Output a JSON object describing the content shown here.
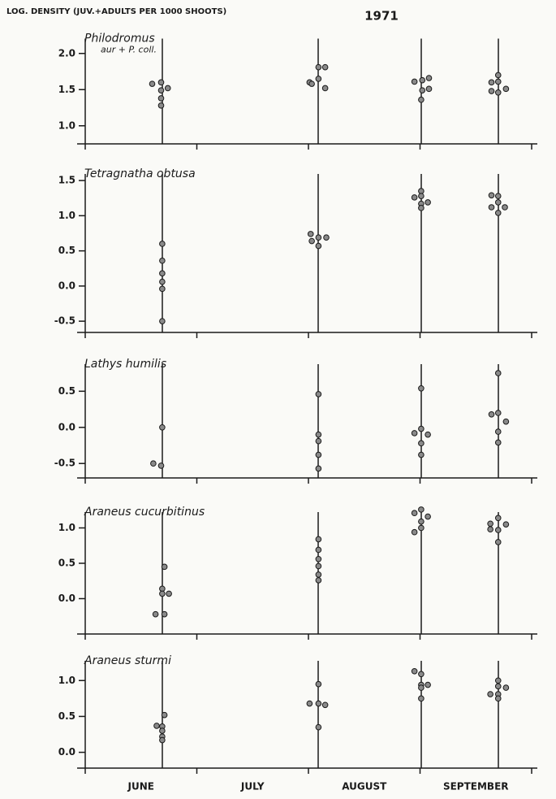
{
  "title": "LOG. DENSITY (JUV.+ADULTS PER 1000 SHOOTS)",
  "subtitle": "1971",
  "x_axis": {
    "categories": [
      "JUNE",
      "JULY",
      "AUGUST",
      "SEPTEMBER"
    ],
    "xlim": [
      0,
      4
    ],
    "xticks": [
      0,
      1,
      2,
      3,
      4
    ]
  },
  "chart_data": [
    {
      "type": "scatter",
      "title": "Philodromus",
      "subtitle": "aur + P. coll.",
      "ylim": [
        0.75,
        2.25
      ],
      "yticks": [
        {
          "value": 1,
          "label": "1.0"
        },
        1.5,
        {
          "value": 2,
          "label": "2.0"
        }
      ],
      "x": [
        0.6,
        0.68,
        0.68,
        0.74,
        0.68,
        0.68,
        2.01,
        2.09,
        2.15,
        2.09,
        2.03,
        2.15,
        2.95,
        3.02,
        3.08,
        3.02,
        3.08,
        3.01,
        3.64,
        3.7,
        3.7,
        3.64,
        3.7,
        3.77
      ],
      "y": [
        1.58,
        1.6,
        1.49,
        1.52,
        1.38,
        1.28,
        1.6,
        1.81,
        1.81,
        1.65,
        1.58,
        1.52,
        1.61,
        1.63,
        1.66,
        1.49,
        1.51,
        1.36,
        1.6,
        1.7,
        1.61,
        1.48,
        1.46,
        1.51
      ]
    },
    {
      "type": "scatter",
      "title": "Tetragnatha obtusa",
      "ylim": [
        -0.66,
        1.64
      ],
      "yticks": [
        -0.5,
        {
          "value": 0,
          "label": "0.0"
        },
        0.5,
        {
          "value": 1,
          "label": "1.0"
        },
        1.5
      ],
      "x": [
        0.69,
        0.69,
        0.69,
        0.69,
        0.69,
        0.69,
        2.02,
        2.09,
        2.16,
        2.03,
        2.09,
        3.01,
        3.01,
        2.95,
        3.07,
        3.01,
        3.01,
        3.64,
        3.7,
        3.7,
        3.64,
        3.76,
        3.7
      ],
      "y": [
        0.6,
        0.36,
        0.18,
        0.06,
        -0.04,
        -0.5,
        0.74,
        0.69,
        0.69,
        0.64,
        0.57,
        1.35,
        1.28,
        1.26,
        1.19,
        1.17,
        1.11,
        1.29,
        1.28,
        1.19,
        1.12,
        1.12,
        1.04
      ]
    },
    {
      "type": "scatter",
      "title": "Lathys humilis",
      "ylim": [
        -0.7,
        0.92
      ],
      "yticks": [
        -0.5,
        {
          "value": 0,
          "label": "0.0"
        },
        0.5
      ],
      "x": [
        0.69,
        0.61,
        0.68,
        2.09,
        2.09,
        2.09,
        2.09,
        2.09,
        3.01,
        3.01,
        3.07,
        3.01,
        3.01,
        2.95,
        3.7,
        3.7,
        3.64,
        3.77,
        3.7,
        3.7
      ],
      "y": [
        0.0,
        -0.5,
        -0.53,
        0.46,
        -0.1,
        -0.19,
        -0.38,
        -0.57,
        0.54,
        -0.02,
        -0.1,
        -0.22,
        -0.38,
        -0.08,
        0.75,
        0.2,
        0.18,
        0.08,
        -0.06,
        -0.21
      ]
    },
    {
      "type": "scatter",
      "title": "Araneus cucurbitinus",
      "ylim": [
        -0.5,
        1.27
      ],
      "yticks": [
        {
          "value": 0,
          "label": "0.0"
        },
        0.5,
        {
          "value": 1,
          "label": "1.0"
        }
      ],
      "x": [
        0.71,
        0.69,
        0.75,
        0.69,
        0.63,
        0.71,
        2.09,
        2.09,
        2.09,
        2.09,
        2.09,
        2.09,
        3.01,
        2.95,
        3.07,
        3.01,
        3.01,
        2.95,
        3.63,
        3.7,
        3.63,
        3.77,
        3.7,
        3.7
      ],
      "y": [
        0.45,
        0.14,
        0.07,
        0.07,
        -0.22,
        -0.22,
        0.84,
        0.69,
        0.56,
        0.46,
        0.34,
        0.26,
        1.26,
        1.21,
        1.16,
        1.09,
        1.0,
        0.94,
        1.06,
        1.14,
        0.98,
        1.05,
        0.8,
        0.97
      ]
    },
    {
      "type": "scatter",
      "title": "Araneus sturmi",
      "ylim": [
        -0.22,
        1.32
      ],
      "yticks": [
        {
          "value": 0,
          "label": "0.0"
        },
        0.5,
        {
          "value": 1,
          "label": "1.0"
        }
      ],
      "x": [
        0.71,
        0.64,
        0.69,
        0.69,
        0.69,
        0.69,
        2.01,
        2.09,
        2.09,
        2.15,
        2.09,
        2.95,
        3.01,
        3.01,
        3.07,
        3.01,
        3.01,
        3.63,
        3.7,
        3.7,
        3.77,
        3.7,
        3.7
      ],
      "y": [
        0.52,
        0.37,
        0.36,
        0.3,
        0.22,
        0.17,
        0.68,
        0.95,
        0.68,
        0.66,
        0.35,
        1.13,
        1.09,
        0.94,
        0.94,
        0.9,
        0.75,
        0.81,
        1.0,
        0.92,
        0.9,
        0.81,
        0.75
      ]
    }
  ]
}
